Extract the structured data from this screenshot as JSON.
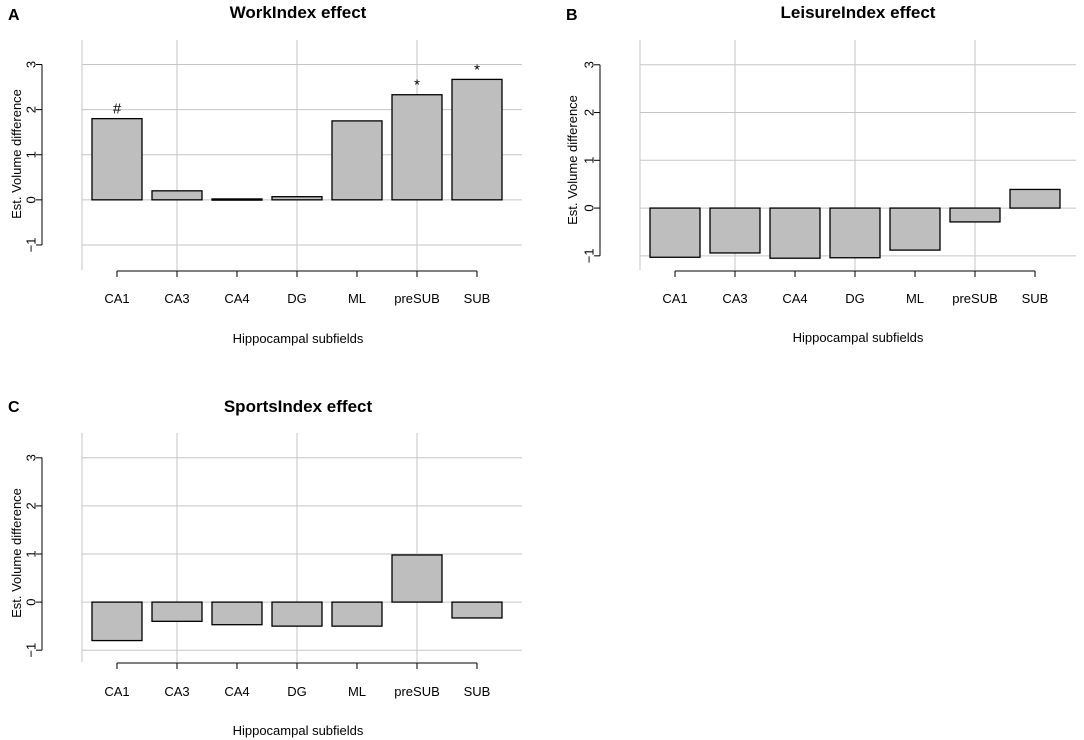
{
  "figure": {
    "colors": {
      "bar_fill": "#bebebe",
      "bar_stroke": "#000000",
      "grid": "#c6c6c6",
      "axis": "#000000"
    }
  },
  "chart_data": [
    {
      "panel": "A",
      "type": "bar",
      "title": "WorkIndex effect",
      "xlabel": "Hippocampal subfields",
      "ylabel": "Est. Volume difference",
      "categories": [
        "CA1",
        "CA3",
        "CA4",
        "DG",
        "ML",
        "preSUB",
        "SUB"
      ],
      "values": [
        1.8,
        0.2,
        0.02,
        0.07,
        1.75,
        2.33,
        2.67
      ],
      "annotations": [
        "#",
        "",
        "",
        "",
        "",
        "*",
        "*"
      ],
      "ylim": [
        -1.4,
        3.1
      ],
      "yticks": [
        -1,
        0,
        1,
        2,
        3
      ],
      "ytick_labels": [
        "−1",
        "0",
        "1",
        "2",
        "3"
      ],
      "grid": true
    },
    {
      "panel": "B",
      "type": "bar",
      "title": "LeisureIndex effect",
      "xlabel": "Hippocampal subfields",
      "ylabel": "Est. Volume difference",
      "categories": [
        "CA1",
        "CA3",
        "CA4",
        "DG",
        "ML",
        "preSUB",
        "SUB"
      ],
      "values": [
        -1.03,
        -0.94,
        -1.05,
        -1.04,
        -0.88,
        -0.29,
        0.39
      ],
      "annotations": [
        "",
        "",
        "",
        "",
        "",
        "",
        ""
      ],
      "ylim": [
        -1.15,
        3.1
      ],
      "yticks": [
        -1,
        0,
        1,
        2,
        3
      ],
      "ytick_labels": [
        "−1",
        "0",
        "1",
        "2",
        "3"
      ],
      "grid": true
    },
    {
      "panel": "C",
      "type": "bar",
      "title": "SportsIndex effect",
      "xlabel": "Hippocampal subfields",
      "ylabel": "Est. Volume difference",
      "categories": [
        "CA1",
        "CA3",
        "CA4",
        "DG",
        "ML",
        "preSUB",
        "SUB"
      ],
      "values": [
        -0.8,
        -0.4,
        -0.47,
        -0.5,
        -0.5,
        0.98,
        -0.33
      ],
      "annotations": [
        "",
        "",
        "",
        "",
        "",
        "",
        ""
      ],
      "ylim": [
        -1.1,
        3.1
      ],
      "yticks": [
        -1,
        0,
        1,
        2,
        3
      ],
      "ytick_labels": [
        "−1",
        "0",
        "1",
        "2",
        "3"
      ],
      "grid": true
    }
  ]
}
